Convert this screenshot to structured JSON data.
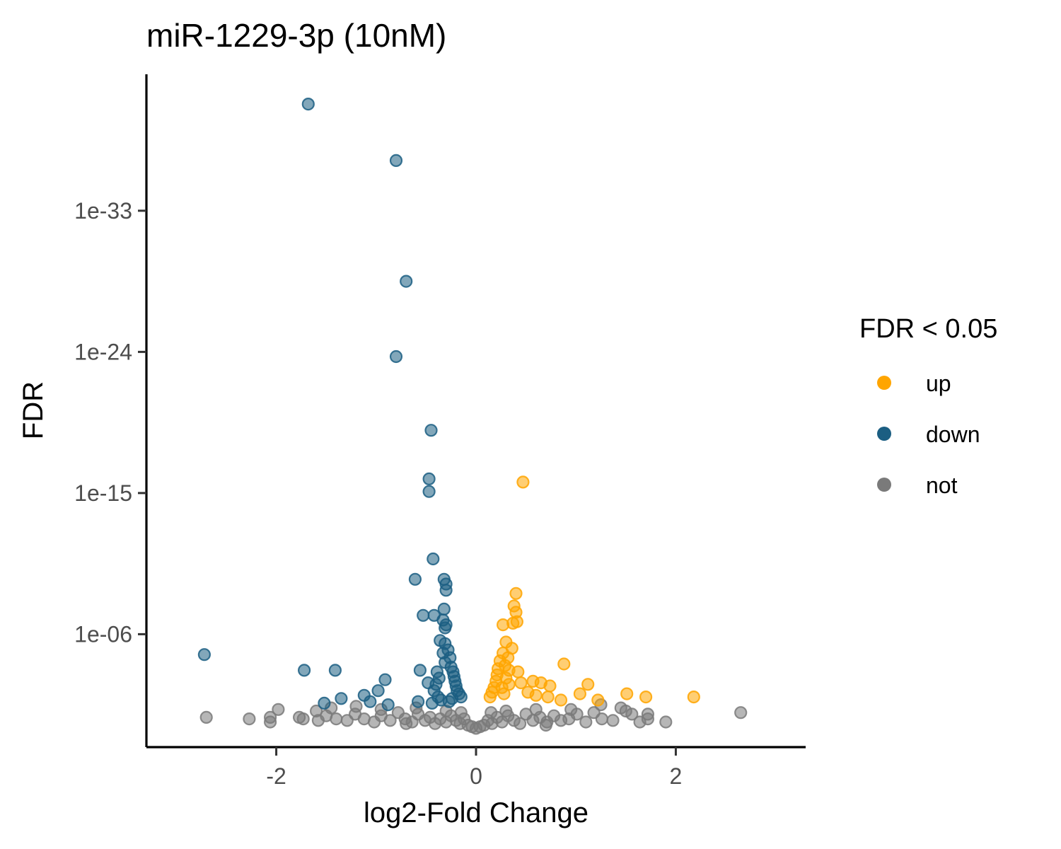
{
  "chart_data": {
    "type": "scatter",
    "title": "miR-1229-3p (10nM)",
    "xlabel": "log2-Fold Change",
    "ylabel": "FDR",
    "x_ticks": [
      "-2",
      "0",
      "2"
    ],
    "x_tick_values": [
      -2,
      0,
      2
    ],
    "y_ticks": [
      "1e-33",
      "1e-24",
      "1e-15",
      "1e-06"
    ],
    "y_tick_values": [
      33,
      24,
      15,
      6
    ],
    "y_scale": "log10 (reversed, -log10 FDR)",
    "xlim": [
      -3.3,
      3.3
    ],
    "ylim_neglog10": [
      -1.2,
      41.7
    ],
    "grid": false,
    "legend": {
      "title": "FDR < 0.05",
      "position": "right",
      "items": [
        {
          "label": "up",
          "color": "#FFA500"
        },
        {
          "label": "down",
          "color": "#1B5E82"
        },
        {
          "label": "not",
          "color": "#7A7A7A"
        }
      ]
    },
    "series": [
      {
        "name": "down",
        "color": "#1B5E82",
        "points": [
          [
            -1.68,
            39.8
          ],
          [
            -0.8,
            36.2
          ],
          [
            -0.7,
            28.5
          ],
          [
            -0.8,
            23.7
          ],
          [
            -0.45,
            19.0
          ],
          [
            -0.47,
            15.9
          ],
          [
            -0.47,
            15.1
          ],
          [
            -0.43,
            10.8
          ],
          [
            -0.61,
            9.5
          ],
          [
            -0.32,
            9.5
          ],
          [
            -0.3,
            9.2
          ],
          [
            -0.3,
            8.8
          ],
          [
            -0.53,
            7.2
          ],
          [
            -0.42,
            7.2
          ],
          [
            -0.32,
            7.6
          ],
          [
            -0.33,
            6.9
          ],
          [
            -0.3,
            6.6
          ],
          [
            -0.31,
            6.4
          ],
          [
            -0.36,
            5.6
          ],
          [
            -0.31,
            5.4
          ],
          [
            -0.28,
            5.0
          ],
          [
            -0.33,
            4.8
          ],
          [
            -0.26,
            4.5
          ],
          [
            -0.31,
            4.2
          ],
          [
            -0.25,
            3.9
          ],
          [
            -0.23,
            3.6
          ],
          [
            -0.22,
            3.3
          ],
          [
            -0.21,
            3.0
          ],
          [
            -0.2,
            2.7
          ],
          [
            -0.19,
            2.4
          ],
          [
            -0.17,
            2.2
          ],
          [
            -0.15,
            2.0
          ],
          [
            -2.72,
            4.7
          ],
          [
            -1.72,
            3.7
          ],
          [
            -1.41,
            3.7
          ],
          [
            -0.91,
            3.1
          ],
          [
            -0.98,
            2.4
          ],
          [
            -1.12,
            2.1
          ],
          [
            -1.35,
            1.9
          ],
          [
            -1.52,
            1.6
          ],
          [
            -0.56,
            3.7
          ],
          [
            -0.48,
            2.9
          ],
          [
            -0.58,
            1.7
          ],
          [
            -1.06,
            1.7
          ],
          [
            -0.88,
            1.5
          ],
          [
            -0.42,
            2.4
          ],
          [
            -0.38,
            2.0
          ],
          [
            -0.35,
            1.8
          ],
          [
            -0.27,
            1.7
          ],
          [
            -0.24,
            1.9
          ],
          [
            -0.44,
            1.6
          ],
          [
            -0.4,
            2.8
          ],
          [
            -0.37,
            3.2
          ],
          [
            -0.39,
            3.6
          ]
        ]
      },
      {
        "name": "up",
        "color": "#FFA500",
        "points": [
          [
            0.47,
            15.7
          ],
          [
            0.4,
            8.6
          ],
          [
            0.38,
            7.8
          ],
          [
            0.4,
            7.4
          ],
          [
            0.41,
            6.8
          ],
          [
            0.37,
            6.7
          ],
          [
            0.27,
            6.6
          ],
          [
            0.3,
            5.5
          ],
          [
            0.36,
            5.1
          ],
          [
            0.88,
            4.1
          ],
          [
            0.27,
            4.8
          ],
          [
            0.24,
            4.3
          ],
          [
            0.22,
            3.8
          ],
          [
            0.21,
            3.4
          ],
          [
            0.2,
            3.0
          ],
          [
            0.18,
            2.6
          ],
          [
            0.16,
            2.3
          ],
          [
            0.14,
            2.0
          ],
          [
            0.3,
            3.2
          ],
          [
            0.33,
            2.8
          ],
          [
            0.42,
            3.6
          ],
          [
            0.45,
            2.9
          ],
          [
            0.57,
            3.0
          ],
          [
            0.65,
            2.9
          ],
          [
            0.74,
            2.7
          ],
          [
            0.52,
            2.3
          ],
          [
            0.6,
            2.1
          ],
          [
            0.72,
            2.0
          ],
          [
            1.12,
            2.8
          ],
          [
            1.04,
            2.2
          ],
          [
            1.22,
            1.8
          ],
          [
            1.51,
            2.2
          ],
          [
            1.7,
            2.0
          ],
          [
            2.18,
            2.0
          ],
          [
            0.85,
            1.8
          ],
          [
            0.28,
            2.2
          ],
          [
            0.26,
            2.6
          ],
          [
            0.33,
            3.7
          ],
          [
            0.29,
            4.0
          ],
          [
            0.32,
            4.5
          ]
        ]
      },
      {
        "name": "not",
        "color": "#7A7A7A",
        "points": [
          [
            -2.7,
            0.7
          ],
          [
            -2.27,
            0.6
          ],
          [
            -2.06,
            0.4
          ],
          [
            -2.06,
            0.7
          ],
          [
            -1.98,
            1.2
          ],
          [
            -1.77,
            0.7
          ],
          [
            -1.73,
            0.6
          ],
          [
            -1.58,
            0.5
          ],
          [
            -1.5,
            0.8
          ],
          [
            -1.4,
            0.6
          ],
          [
            -1.29,
            0.5
          ],
          [
            -1.21,
            0.9
          ],
          [
            -1.12,
            0.6
          ],
          [
            -1.02,
            0.4
          ],
          [
            -0.95,
            0.8
          ],
          [
            -0.86,
            0.5
          ],
          [
            -0.78,
            1.0
          ],
          [
            -0.71,
            0.6
          ],
          [
            -0.64,
            0.4
          ],
          [
            -0.58,
            0.9
          ],
          [
            -0.51,
            0.5
          ],
          [
            -0.46,
            0.7
          ],
          [
            -0.41,
            0.3
          ],
          [
            -0.36,
            0.6
          ],
          [
            -0.3,
            0.4
          ],
          [
            -0.25,
            0.8
          ],
          [
            -0.2,
            0.5
          ],
          [
            -0.16,
            0.3
          ],
          [
            -0.12,
            0.6
          ],
          [
            -0.08,
            0.2
          ],
          [
            -0.04,
            0.1
          ],
          [
            0.0,
            0.0
          ],
          [
            0.04,
            0.1
          ],
          [
            0.08,
            0.2
          ],
          [
            0.12,
            0.5
          ],
          [
            0.16,
            0.3
          ],
          [
            0.21,
            0.7
          ],
          [
            0.26,
            0.4
          ],
          [
            0.32,
            0.8
          ],
          [
            0.38,
            0.5
          ],
          [
            0.44,
            0.3
          ],
          [
            0.5,
            0.9
          ],
          [
            0.57,
            0.5
          ],
          [
            0.64,
            0.7
          ],
          [
            0.71,
            0.4
          ],
          [
            0.78,
            0.8
          ],
          [
            0.85,
            0.5
          ],
          [
            0.93,
            0.6
          ],
          [
            1.01,
            0.9
          ],
          [
            1.1,
            0.4
          ],
          [
            1.18,
            1.0
          ],
          [
            1.26,
            0.6
          ],
          [
            1.37,
            0.5
          ],
          [
            1.45,
            1.3
          ],
          [
            1.5,
            1.1
          ],
          [
            1.56,
            0.9
          ],
          [
            1.64,
            0.4
          ],
          [
            1.72,
            0.6
          ],
          [
            1.72,
            0.9
          ],
          [
            1.9,
            0.4
          ],
          [
            2.65,
            1.0
          ],
          [
            -1.45,
            1.3
          ],
          [
            -1.6,
            1.1
          ],
          [
            -0.6,
            1.3
          ],
          [
            0.6,
            1.2
          ],
          [
            -0.95,
            1.2
          ],
          [
            0.95,
            1.2
          ],
          [
            -0.3,
            1.1
          ],
          [
            0.3,
            1.1
          ],
          [
            1.25,
            1.5
          ],
          [
            -1.2,
            1.4
          ],
          [
            -0.7,
            0.3
          ],
          [
            0.7,
            0.2
          ],
          [
            -0.15,
            1.0
          ],
          [
            0.15,
            1.0
          ]
        ]
      }
    ]
  }
}
